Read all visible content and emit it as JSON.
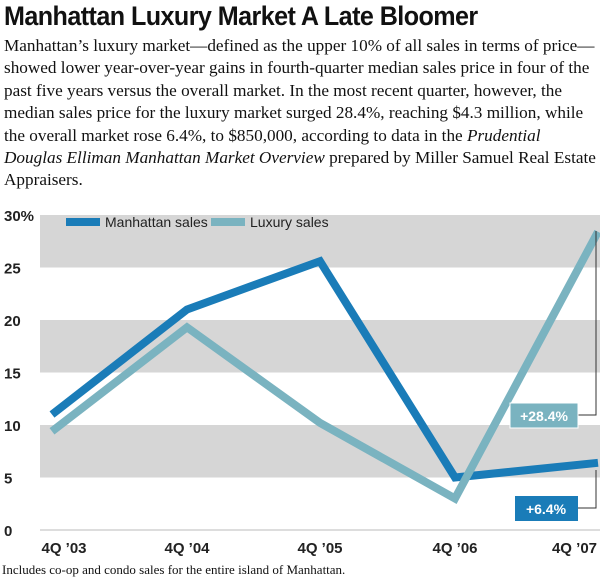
{
  "headline": "Manhattan Luxury Market A Late Bloomer",
  "intro": {
    "part1": "Manhattan’s luxury market—defined as the upper 10% of all sales in terms of price—showed lower year-over-year gains in fourth-quarter median sales price in four of the past five years versus the overall market. In the most recent quarter, however, the median sales price for the luxury market surged 28.4%, reaching $4.3 million, while the overall market rose 6.4%, to $850,000, according to data in the ",
    "source": "Prudential Douglas Elliman Manhattan Market Overview",
    "part2": " prepared by Miller Samuel Real Estate Appraisers."
  },
  "footnote": "Includes co-op and condo sales for the entire island of Manhattan.",
  "colors": {
    "manhattan": "#1a7cb8",
    "luxury": "#7ab3c0",
    "band": "#d6d6d6"
  },
  "chart_data": {
    "type": "line",
    "categories": [
      "4Q ’03",
      "4Q ’04",
      "4Q ’05",
      "4Q ’06",
      "4Q ’07"
    ],
    "series": [
      {
        "name": "Manhattan sales",
        "values": [
          11,
          21,
          25.6,
          5,
          6.4
        ]
      },
      {
        "name": "Luxury sales",
        "values": [
          9.4,
          19.3,
          10.2,
          3,
          28.4
        ]
      }
    ],
    "ylim": [
      0,
      30
    ],
    "yticks": [
      "0",
      "5",
      "10",
      "15",
      "20",
      "25",
      "30%"
    ],
    "annotations": [
      {
        "series": "Luxury sales",
        "label": "+28.4%"
      },
      {
        "series": "Manhattan sales",
        "label": "+6.4%"
      }
    ],
    "legend": "top-left",
    "grid": "alternating horizontal bands"
  }
}
